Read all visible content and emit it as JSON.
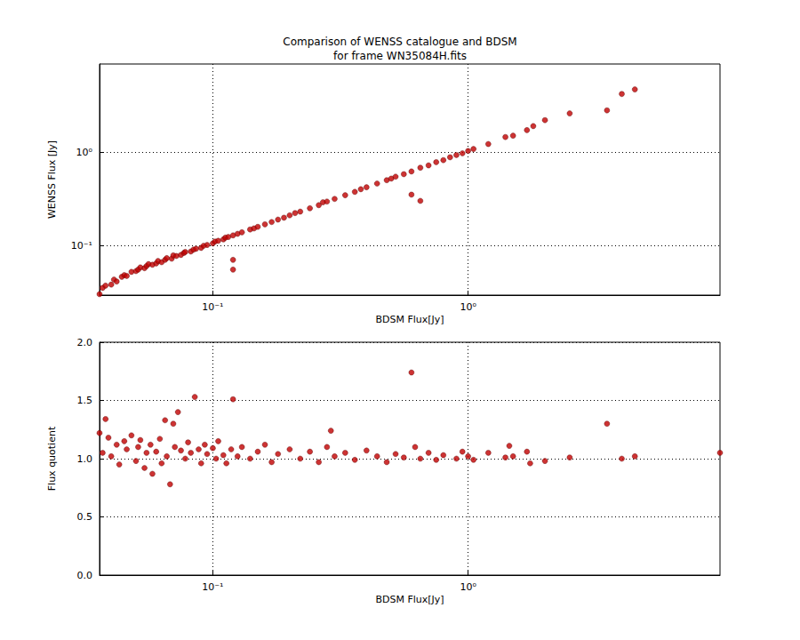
{
  "chart_data": [
    {
      "type": "scatter",
      "title": "Comparison of WENSS catalogue and BDSM",
      "subtitle": "for frame WN35084H.fits",
      "x_label": "BDSM Flux[Jy]",
      "y_label": "WENSS Flux [Jy]",
      "log": true,
      "grid": true,
      "color": "#c00000",
      "marker": "circle",
      "xlim": [
        0.036,
        9.7
      ],
      "ylim": [
        0.0293,
        8.8
      ],
      "xticks": [
        {
          "value": 0.1,
          "label": "10⁻¹"
        },
        {
          "value": 1,
          "label": "10⁰"
        }
      ],
      "yticks": [
        {
          "value": 0.1,
          "label": "10⁻¹"
        },
        {
          "value": 1,
          "label": "10⁰"
        }
      ],
      "x": [
        0.036,
        0.037,
        0.038,
        0.04,
        0.041,
        0.042,
        0.044,
        0.045,
        0.046,
        0.048,
        0.05,
        0.051,
        0.052,
        0.054,
        0.055,
        0.056,
        0.058,
        0.06,
        0.061,
        0.063,
        0.065,
        0.066,
        0.069,
        0.07,
        0.072,
        0.075,
        0.077,
        0.078,
        0.082,
        0.084,
        0.086,
        0.09,
        0.092,
        0.095,
        0.1,
        0.102,
        0.105,
        0.11,
        0.112,
        0.115,
        0.12,
        0.12,
        0.12,
        0.125,
        0.13,
        0.14,
        0.145,
        0.15,
        0.16,
        0.17,
        0.18,
        0.19,
        0.2,
        0.21,
        0.22,
        0.24,
        0.26,
        0.27,
        0.28,
        0.3,
        0.33,
        0.36,
        0.38,
        0.4,
        0.44,
        0.48,
        0.5,
        0.52,
        0.56,
        0.6,
        0.6,
        0.65,
        0.65,
        0.7,
        0.75,
        0.8,
        0.85,
        0.9,
        0.95,
        1.0,
        1.05,
        1.2,
        1.4,
        1.5,
        1.7,
        1.8,
        2.0,
        2.5,
        3.5,
        4.0,
        4.5
      ],
      "values": [
        0.03,
        0.035,
        0.037,
        0.038,
        0.043,
        0.041,
        0.046,
        0.048,
        0.047,
        0.052,
        0.053,
        0.055,
        0.058,
        0.057,
        0.06,
        0.063,
        0.062,
        0.064,
        0.068,
        0.066,
        0.07,
        0.073,
        0.072,
        0.078,
        0.077,
        0.079,
        0.083,
        0.085,
        0.086,
        0.09,
        0.092,
        0.094,
        0.099,
        0.101,
        0.105,
        0.11,
        0.112,
        0.116,
        0.121,
        0.123,
        0.128,
        0.055,
        0.07,
        0.133,
        0.138,
        0.148,
        0.152,
        0.158,
        0.168,
        0.178,
        0.189,
        0.198,
        0.21,
        0.222,
        0.23,
        0.25,
        0.27,
        0.29,
        0.295,
        0.315,
        0.345,
        0.375,
        0.4,
        0.42,
        0.46,
        0.5,
        0.52,
        0.545,
        0.58,
        0.62,
        0.35,
        0.68,
        0.3,
        0.72,
        0.78,
        0.82,
        0.88,
        0.93,
        0.97,
        1.03,
        1.08,
        1.22,
        1.45,
        1.5,
        1.72,
        1.9,
        2.2,
        2.6,
        2.8,
        4.2,
        4.7
      ]
    },
    {
      "type": "scatter",
      "x_label": "BDSM Flux[Jy]",
      "y_label": "Flux quotient",
      "log": "x",
      "grid": true,
      "color": "#c00000",
      "marker": "circle",
      "xlim": [
        0.036,
        9.7
      ],
      "ylim": [
        0,
        2
      ],
      "xticks": [
        {
          "value": 0.1,
          "label": "10⁻¹"
        },
        {
          "value": 1,
          "label": "10⁰"
        }
      ],
      "yticks": [
        {
          "value": 0,
          "label": "0.0"
        },
        {
          "value": 0.5,
          "label": "0.5"
        },
        {
          "value": 1,
          "label": "1.0"
        },
        {
          "value": 1.5,
          "label": "1.5"
        },
        {
          "value": 2,
          "label": "2.0"
        }
      ],
      "x": [
        0.036,
        0.037,
        0.038,
        0.039,
        0.04,
        0.042,
        0.043,
        0.045,
        0.046,
        0.048,
        0.05,
        0.051,
        0.052,
        0.054,
        0.055,
        0.057,
        0.058,
        0.06,
        0.062,
        0.063,
        0.065,
        0.066,
        0.068,
        0.07,
        0.071,
        0.073,
        0.075,
        0.078,
        0.08,
        0.082,
        0.085,
        0.088,
        0.09,
        0.093,
        0.095,
        0.1,
        0.103,
        0.105,
        0.11,
        0.113,
        0.118,
        0.12,
        0.125,
        0.13,
        0.14,
        0.15,
        0.16,
        0.17,
        0.18,
        0.2,
        0.22,
        0.24,
        0.26,
        0.28,
        0.29,
        0.3,
        0.33,
        0.36,
        0.4,
        0.44,
        0.48,
        0.52,
        0.56,
        0.6,
        0.62,
        0.65,
        0.7,
        0.75,
        0.8,
        0.9,
        0.95,
        1.0,
        1.05,
        1.2,
        1.4,
        1.45,
        1.5,
        1.7,
        1.75,
        2.0,
        2.5,
        3.5,
        4.0,
        4.5,
        9.7
      ],
      "values": [
        1.22,
        1.05,
        1.34,
        1.18,
        1.02,
        1.12,
        0.95,
        1.15,
        1.08,
        1.2,
        0.98,
        1.1,
        1.16,
        0.92,
        1.05,
        1.12,
        0.87,
        1.06,
        1.17,
        0.96,
        1.33,
        1.02,
        0.78,
        1.3,
        1.1,
        1.4,
        1.07,
        1.0,
        1.14,
        1.05,
        1.53,
        1.08,
        0.96,
        1.12,
        1.04,
        1.09,
        1.0,
        1.15,
        1.03,
        0.96,
        1.08,
        1.51,
        1.02,
        1.1,
        1.0,
        1.06,
        1.12,
        0.97,
        1.04,
        1.08,
        1.0,
        1.06,
        0.97,
        1.1,
        1.24,
        1.02,
        1.05,
        0.99,
        1.07,
        1.02,
        0.97,
        1.04,
        1.01,
        1.74,
        1.1,
        1.0,
        1.05,
        0.99,
        1.03,
        1.0,
        1.06,
        1.02,
        0.99,
        1.05,
        1.01,
        1.11,
        1.02,
        1.06,
        0.96,
        0.98,
        1.01,
        1.3,
        1.0,
        1.02,
        1.05
      ]
    }
  ]
}
